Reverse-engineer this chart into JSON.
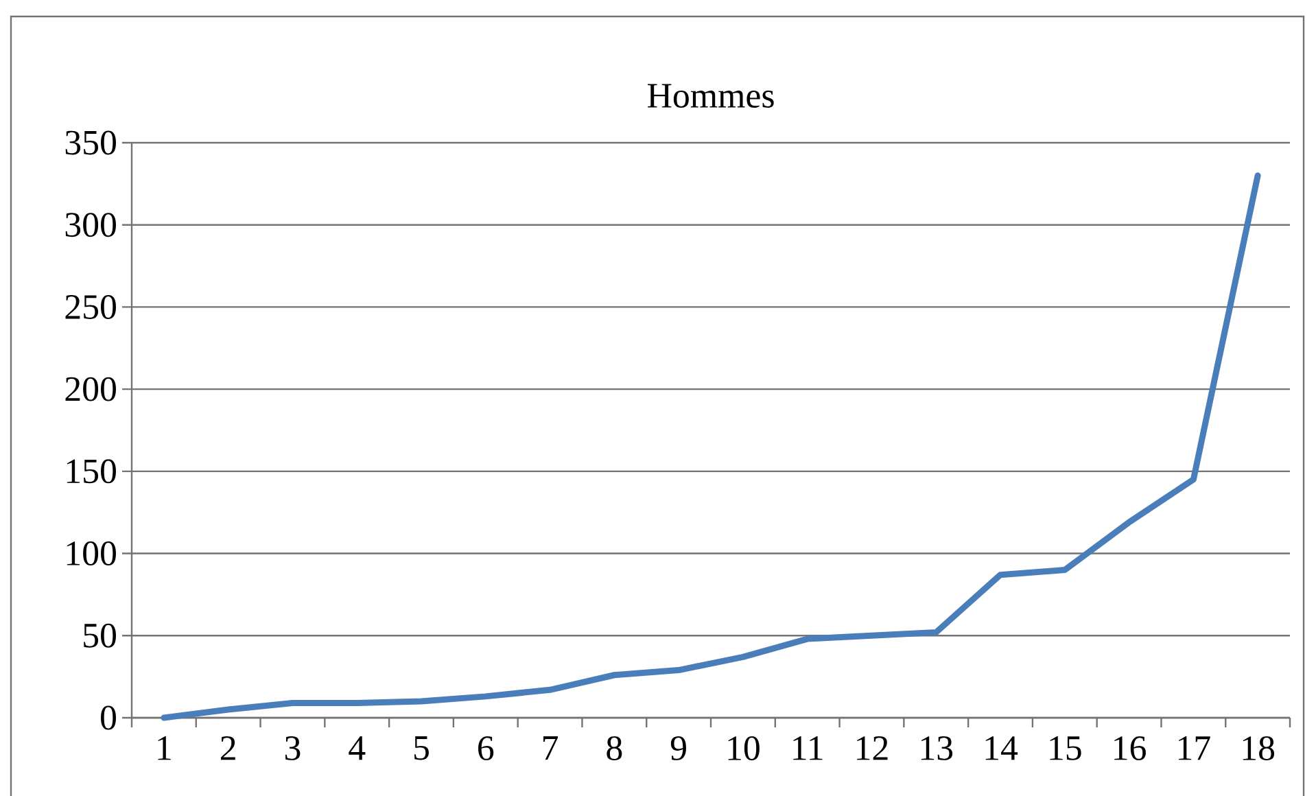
{
  "chart_data": {
    "type": "line",
    "title": "Hommes",
    "categories": [
      "1",
      "2",
      "3",
      "4",
      "5",
      "6",
      "7",
      "8",
      "9",
      "10",
      "11",
      "12",
      "13",
      "14",
      "15",
      "16",
      "17",
      "18"
    ],
    "series": [
      {
        "color": "#4a7ebb",
        "values": [
          0,
          5,
          9,
          9,
          10,
          13,
          17,
          26,
          29,
          37,
          48,
          50,
          52,
          87,
          90,
          119,
          145,
          330
        ]
      }
    ],
    "ylim": [
      0,
      350
    ],
    "yticks": [
      0,
      50,
      100,
      150,
      200,
      250,
      300,
      350
    ],
    "grid": "y",
    "marker": "none",
    "line_style": "solid"
  }
}
